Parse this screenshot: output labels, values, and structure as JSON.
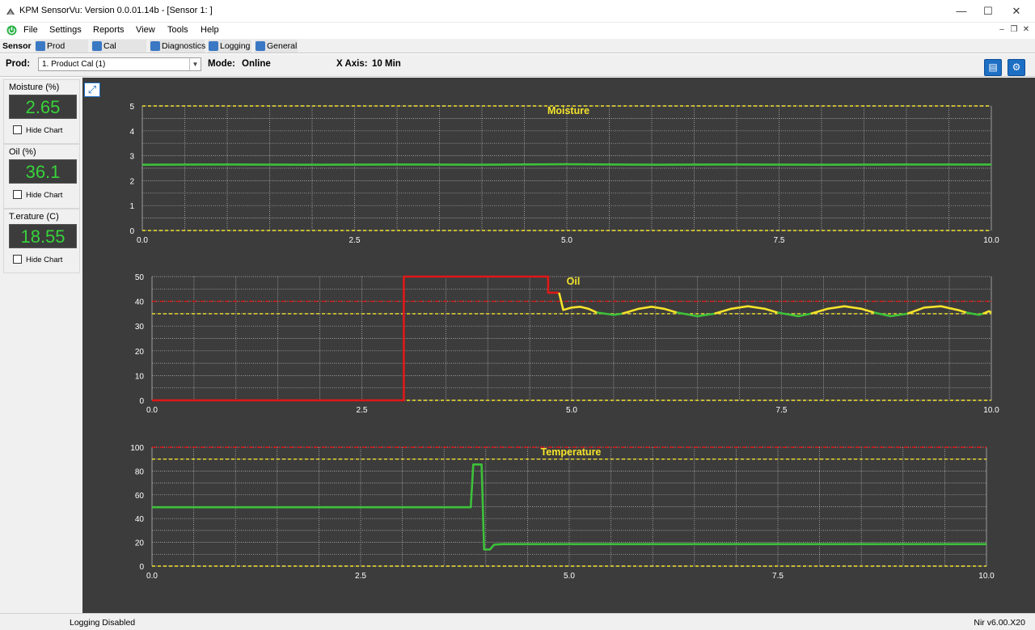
{
  "window": {
    "title": "KPM SensorVu: Version 0.0.01.14b - [Sensor 1:          ]",
    "minimize": "—",
    "maximize": "☐",
    "close": "✕"
  },
  "menu": [
    "File",
    "Settings",
    "Reports",
    "View",
    "Tools",
    "Help"
  ],
  "toolbar": {
    "label": "Sensor",
    "buttons": [
      "Prod Setup",
      "Cal Routine",
      "Diagnostics",
      "Logging",
      "General"
    ]
  },
  "prodbar": {
    "prod_label": "Prod:",
    "prod_value": "1. Product Cal (1)",
    "mode_label": "Mode:",
    "mode_value": "Online",
    "xaxis_label": "X Axis:",
    "xaxis_value": "10 Min"
  },
  "gauges": [
    {
      "label": "Moisture (%)",
      "value": "2.65",
      "hide": "Hide Chart"
    },
    {
      "label": "Oil (%)",
      "value": "36.1",
      "hide": "Hide Chart"
    },
    {
      "label": "T.erature (C)",
      "value": "18.55",
      "hide": "Hide Chart"
    }
  ],
  "status": {
    "left": "Logging Disabled",
    "right": "Nir v6.00.X20"
  },
  "colors": {
    "chart_bg": "#3c3c3c",
    "grid": "#dcdcdc",
    "yellow": "#f5e32a",
    "green": "#3dc13a",
    "red": "#e01818"
  },
  "chart_data": [
    {
      "type": "line",
      "title": "Moisture",
      "xlim": [
        0,
        10
      ],
      "ylim": [
        0,
        5
      ],
      "xticks": [
        "0.0",
        "2.5",
        "5.0",
        "7.5",
        "10.0"
      ],
      "yticks": [
        "0",
        "1",
        "2",
        "3",
        "4",
        "5"
      ],
      "hlines": [
        {
          "y": 5,
          "color": "yellow"
        },
        {
          "y": 0,
          "color": "yellow"
        }
      ],
      "series": [
        {
          "color": "green",
          "x": [
            0,
            1,
            2,
            3,
            4,
            5,
            6,
            7,
            8,
            9,
            10
          ],
          "y": [
            2.64,
            2.65,
            2.64,
            2.65,
            2.64,
            2.66,
            2.64,
            2.65,
            2.64,
            2.65,
            2.65
          ]
        }
      ]
    },
    {
      "type": "line",
      "title": "Oil",
      "xlim": [
        0,
        10
      ],
      "ylim": [
        0,
        50
      ],
      "xticks": [
        "0.0",
        "2.5",
        "5.0",
        "7.5",
        "10.0"
      ],
      "yticks": [
        "0",
        "10",
        "20",
        "30",
        "40",
        "50"
      ],
      "hlines": [
        {
          "y": 40,
          "color": "red"
        },
        {
          "y": 35,
          "color": "yellow"
        },
        {
          "y": 0,
          "color": "yellow"
        }
      ],
      "series": [
        {
          "color": "red",
          "x": [
            0,
            3.0,
            3.0,
            4.72,
            4.72,
            4.85
          ],
          "y": [
            0,
            0,
            50,
            50,
            43.5,
            43.5
          ]
        },
        {
          "color": "yellow",
          "x": [
            4.85,
            4.9,
            5.0,
            5.1,
            5.2,
            5.3
          ],
          "y": [
            43.5,
            36.5,
            37.5,
            37.8,
            37,
            35.5
          ]
        },
        {
          "color": "green",
          "x": [
            5.3,
            5.5,
            5.6
          ],
          "y": [
            35.5,
            34.5,
            35
          ]
        },
        {
          "color": "yellow",
          "x": [
            5.6,
            5.8,
            5.95,
            6.1,
            6.25
          ],
          "y": [
            35,
            37,
            37.8,
            37,
            35.5
          ]
        },
        {
          "color": "green",
          "x": [
            6.25,
            6.5,
            6.7
          ],
          "y": [
            35.5,
            34,
            35
          ]
        },
        {
          "color": "yellow",
          "x": [
            6.7,
            6.9,
            7.1,
            7.3,
            7.45
          ],
          "y": [
            35,
            37,
            38,
            37,
            35.5
          ]
        },
        {
          "color": "green",
          "x": [
            7.45,
            7.7,
            7.85
          ],
          "y": [
            35.5,
            34,
            35
          ]
        },
        {
          "color": "yellow",
          "x": [
            7.85,
            8.05,
            8.25,
            8.45,
            8.6
          ],
          "y": [
            35,
            37,
            38,
            37,
            35.5
          ]
        },
        {
          "color": "green",
          "x": [
            8.6,
            8.8,
            9.0
          ],
          "y": [
            35.5,
            34,
            35
          ]
        },
        {
          "color": "yellow",
          "x": [
            9.0,
            9.2,
            9.4,
            9.6,
            9.7
          ],
          "y": [
            35,
            37.5,
            38,
            36.5,
            35.5
          ]
        },
        {
          "color": "green",
          "x": [
            9.7,
            9.85,
            9.9
          ],
          "y": [
            35.5,
            34.5,
            35
          ]
        },
        {
          "color": "yellow",
          "x": [
            9.9,
            9.97,
            10.0
          ],
          "y": [
            35,
            36,
            35.5
          ]
        }
      ]
    },
    {
      "type": "line",
      "title": "Temperature",
      "xlim": [
        0,
        10
      ],
      "ylim": [
        0,
        100
      ],
      "xticks": [
        "0.0",
        "2.5",
        "5.0",
        "7.5",
        "10.0"
      ],
      "yticks": [
        "0",
        "20",
        "40",
        "60",
        "80",
        "100"
      ],
      "hlines": [
        {
          "y": 100,
          "color": "red"
        },
        {
          "y": 90,
          "color": "yellow"
        },
        {
          "y": 0,
          "color": "yellow"
        }
      ],
      "series": [
        {
          "color": "green",
          "x": [
            0,
            3.82,
            3.85,
            3.95,
            3.98,
            4.05,
            4.1,
            4.2,
            10.0
          ],
          "y": [
            49.5,
            49.5,
            85.5,
            85.5,
            14,
            14,
            18,
            18.5,
            18.5
          ]
        }
      ]
    }
  ]
}
